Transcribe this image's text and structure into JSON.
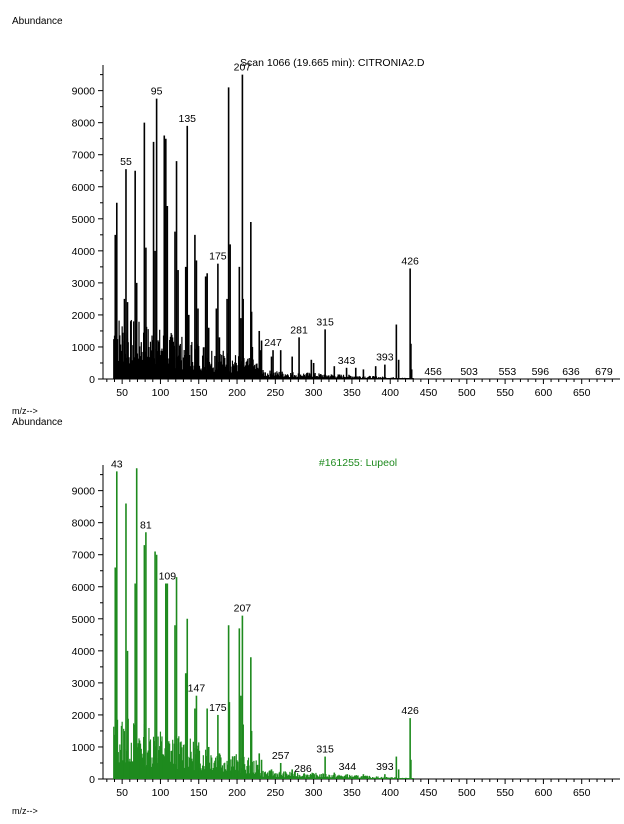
{
  "chart_data": [
    {
      "type": "bar",
      "title": "Scan 1066 (19.665 min): CITRONIA2.D",
      "ylabel": "Abundance",
      "xlabel": "m/z-->",
      "color": "#000000",
      "xlim": [
        25,
        700
      ],
      "ylim": [
        0,
        9800
      ],
      "xticks": [
        50,
        100,
        150,
        200,
        250,
        300,
        350,
        400,
        450,
        500,
        550,
        600,
        650
      ],
      "yticks": [
        0,
        1000,
        2000,
        3000,
        4000,
        5000,
        6000,
        7000,
        8000,
        9000
      ],
      "labeled_peaks": [
        {
          "label": "55",
          "x": 55,
          "y": 6550
        },
        {
          "label": "95",
          "x": 95,
          "y": 8750
        },
        {
          "label": "135",
          "x": 135,
          "y": 7900
        },
        {
          "label": "175",
          "x": 175,
          "y": 3600
        },
        {
          "label": "207",
          "x": 207,
          "y": 9500
        },
        {
          "label": "247",
          "x": 247,
          "y": 900
        },
        {
          "label": "281",
          "x": 281,
          "y": 1300
        },
        {
          "label": "315",
          "x": 315,
          "y": 1550
        },
        {
          "label": "343",
          "x": 343,
          "y": 350
        },
        {
          "label": "393",
          "x": 393,
          "y": 450
        },
        {
          "label": "426",
          "x": 426,
          "y": 3450
        },
        {
          "label": "456",
          "x": 456,
          "y": 0
        },
        {
          "label": "503",
          "x": 503,
          "y": 0
        },
        {
          "label": "553",
          "x": 553,
          "y": 0
        },
        {
          "label": "596",
          "x": 596,
          "y": 0
        },
        {
          "label": "636",
          "x": 636,
          "y": 0
        },
        {
          "label": "679",
          "x": 679,
          "y": 0
        }
      ],
      "peaks": [
        [
          41,
          4500
        ],
        [
          43,
          5500
        ],
        [
          53,
          2500
        ],
        [
          55,
          6550
        ],
        [
          57,
          2400
        ],
        [
          67,
          6500
        ],
        [
          69,
          3000
        ],
        [
          79,
          8000
        ],
        [
          81,
          4100
        ],
        [
          91,
          7400
        ],
        [
          93,
          4000
        ],
        [
          95,
          8750
        ],
        [
          105,
          7600
        ],
        [
          107,
          7500
        ],
        [
          109,
          5400
        ],
        [
          119,
          4600
        ],
        [
          121,
          6800
        ],
        [
          123,
          3400
        ],
        [
          133,
          3500
        ],
        [
          135,
          7900
        ],
        [
          137,
          2000
        ],
        [
          145,
          4500
        ],
        [
          147,
          3700
        ],
        [
          149,
          2200
        ],
        [
          159,
          3200
        ],
        [
          161,
          3300
        ],
        [
          163,
          1600
        ],
        [
          173,
          2200
        ],
        [
          175,
          3600
        ],
        [
          177,
          1300
        ],
        [
          187,
          2500
        ],
        [
          189,
          9100
        ],
        [
          191,
          4200
        ],
        [
          203,
          3500
        ],
        [
          205,
          1900
        ],
        [
          207,
          9500
        ],
        [
          208,
          2500
        ],
        [
          218,
          4900
        ],
        [
          219,
          2100
        ],
        [
          220,
          1000
        ],
        [
          229,
          1500
        ],
        [
          231,
          900
        ],
        [
          232,
          1200
        ],
        [
          245,
          700
        ],
        [
          247,
          900
        ],
        [
          257,
          900
        ],
        [
          272,
          700
        ],
        [
          281,
          1300
        ],
        [
          297,
          600
        ],
        [
          300,
          500
        ],
        [
          315,
          1550
        ],
        [
          327,
          400
        ],
        [
          343,
          350
        ],
        [
          355,
          350
        ],
        [
          365,
          300
        ],
        [
          381,
          400
        ],
        [
          393,
          450
        ],
        [
          408,
          1700
        ],
        [
          411,
          600
        ],
        [
          426,
          3450
        ],
        [
          427,
          1100
        ],
        [
          428,
          300
        ]
      ]
    },
    {
      "type": "bar",
      "title": "#161255: Lupeol",
      "ylabel": "Abundance",
      "xlabel": "m/z-->",
      "color": "#1e8a1e",
      "xlim": [
        25,
        700
      ],
      "ylim": [
        0,
        9800
      ],
      "xticks": [
        50,
        100,
        150,
        200,
        250,
        300,
        350,
        400,
        450,
        500,
        550,
        600,
        650
      ],
      "yticks": [
        0,
        1000,
        2000,
        3000,
        4000,
        5000,
        6000,
        7000,
        8000,
        9000
      ],
      "labeled_peaks": [
        {
          "label": "43",
          "x": 43,
          "y": 9600
        },
        {
          "label": "81",
          "x": 81,
          "y": 7700
        },
        {
          "label": "109",
          "x": 109,
          "y": 6100
        },
        {
          "label": "147",
          "x": 147,
          "y": 2600
        },
        {
          "label": "175",
          "x": 175,
          "y": 2000
        },
        {
          "label": "207",
          "x": 207,
          "y": 5100
        },
        {
          "label": "257",
          "x": 257,
          "y": 500
        },
        {
          "label": "286",
          "x": 286,
          "y": 100
        },
        {
          "label": "315",
          "x": 315,
          "y": 700
        },
        {
          "label": "344",
          "x": 344,
          "y": 150
        },
        {
          "label": "393",
          "x": 393,
          "y": 150
        },
        {
          "label": "426",
          "x": 426,
          "y": 1900
        }
      ],
      "peaks": [
        [
          41,
          6600
        ],
        [
          43,
          9600
        ],
        [
          55,
          8600
        ],
        [
          57,
          4000
        ],
        [
          67,
          6100
        ],
        [
          69,
          9700
        ],
        [
          79,
          7300
        ],
        [
          81,
          7700
        ],
        [
          93,
          7100
        ],
        [
          95,
          7000
        ],
        [
          107,
          6100
        ],
        [
          109,
          6100
        ],
        [
          119,
          4800
        ],
        [
          121,
          6300
        ],
        [
          133,
          3300
        ],
        [
          135,
          5000
        ],
        [
          145,
          2200
        ],
        [
          147,
          2600
        ],
        [
          161,
          2200
        ],
        [
          163,
          1000
        ],
        [
          175,
          2000
        ],
        [
          177,
          800
        ],
        [
          189,
          4800
        ],
        [
          190,
          2400
        ],
        [
          203,
          4700
        ],
        [
          205,
          2600
        ],
        [
          207,
          5100
        ],
        [
          208,
          1700
        ],
        [
          218,
          3800
        ],
        [
          219,
          1500
        ],
        [
          229,
          800
        ],
        [
          232,
          600
        ],
        [
          245,
          300
        ],
        [
          257,
          500
        ],
        [
          272,
          300
        ],
        [
          286,
          100
        ],
        [
          300,
          100
        ],
        [
          315,
          700
        ],
        [
          327,
          200
        ],
        [
          344,
          150
        ],
        [
          365,
          150
        ],
        [
          393,
          150
        ],
        [
          408,
          700
        ],
        [
          411,
          300
        ],
        [
          426,
          1900
        ],
        [
          427,
          600
        ]
      ]
    }
  ],
  "panels": [
    {
      "ylabel": "Abundance",
      "xlabel": "m/z-->",
      "title": "Scan 1066 (19.665 min): CITRONIA2.D"
    },
    {
      "ylabel": "Abundance",
      "xlabel": "m/z-->",
      "title": "#161255: Lupeol"
    }
  ]
}
